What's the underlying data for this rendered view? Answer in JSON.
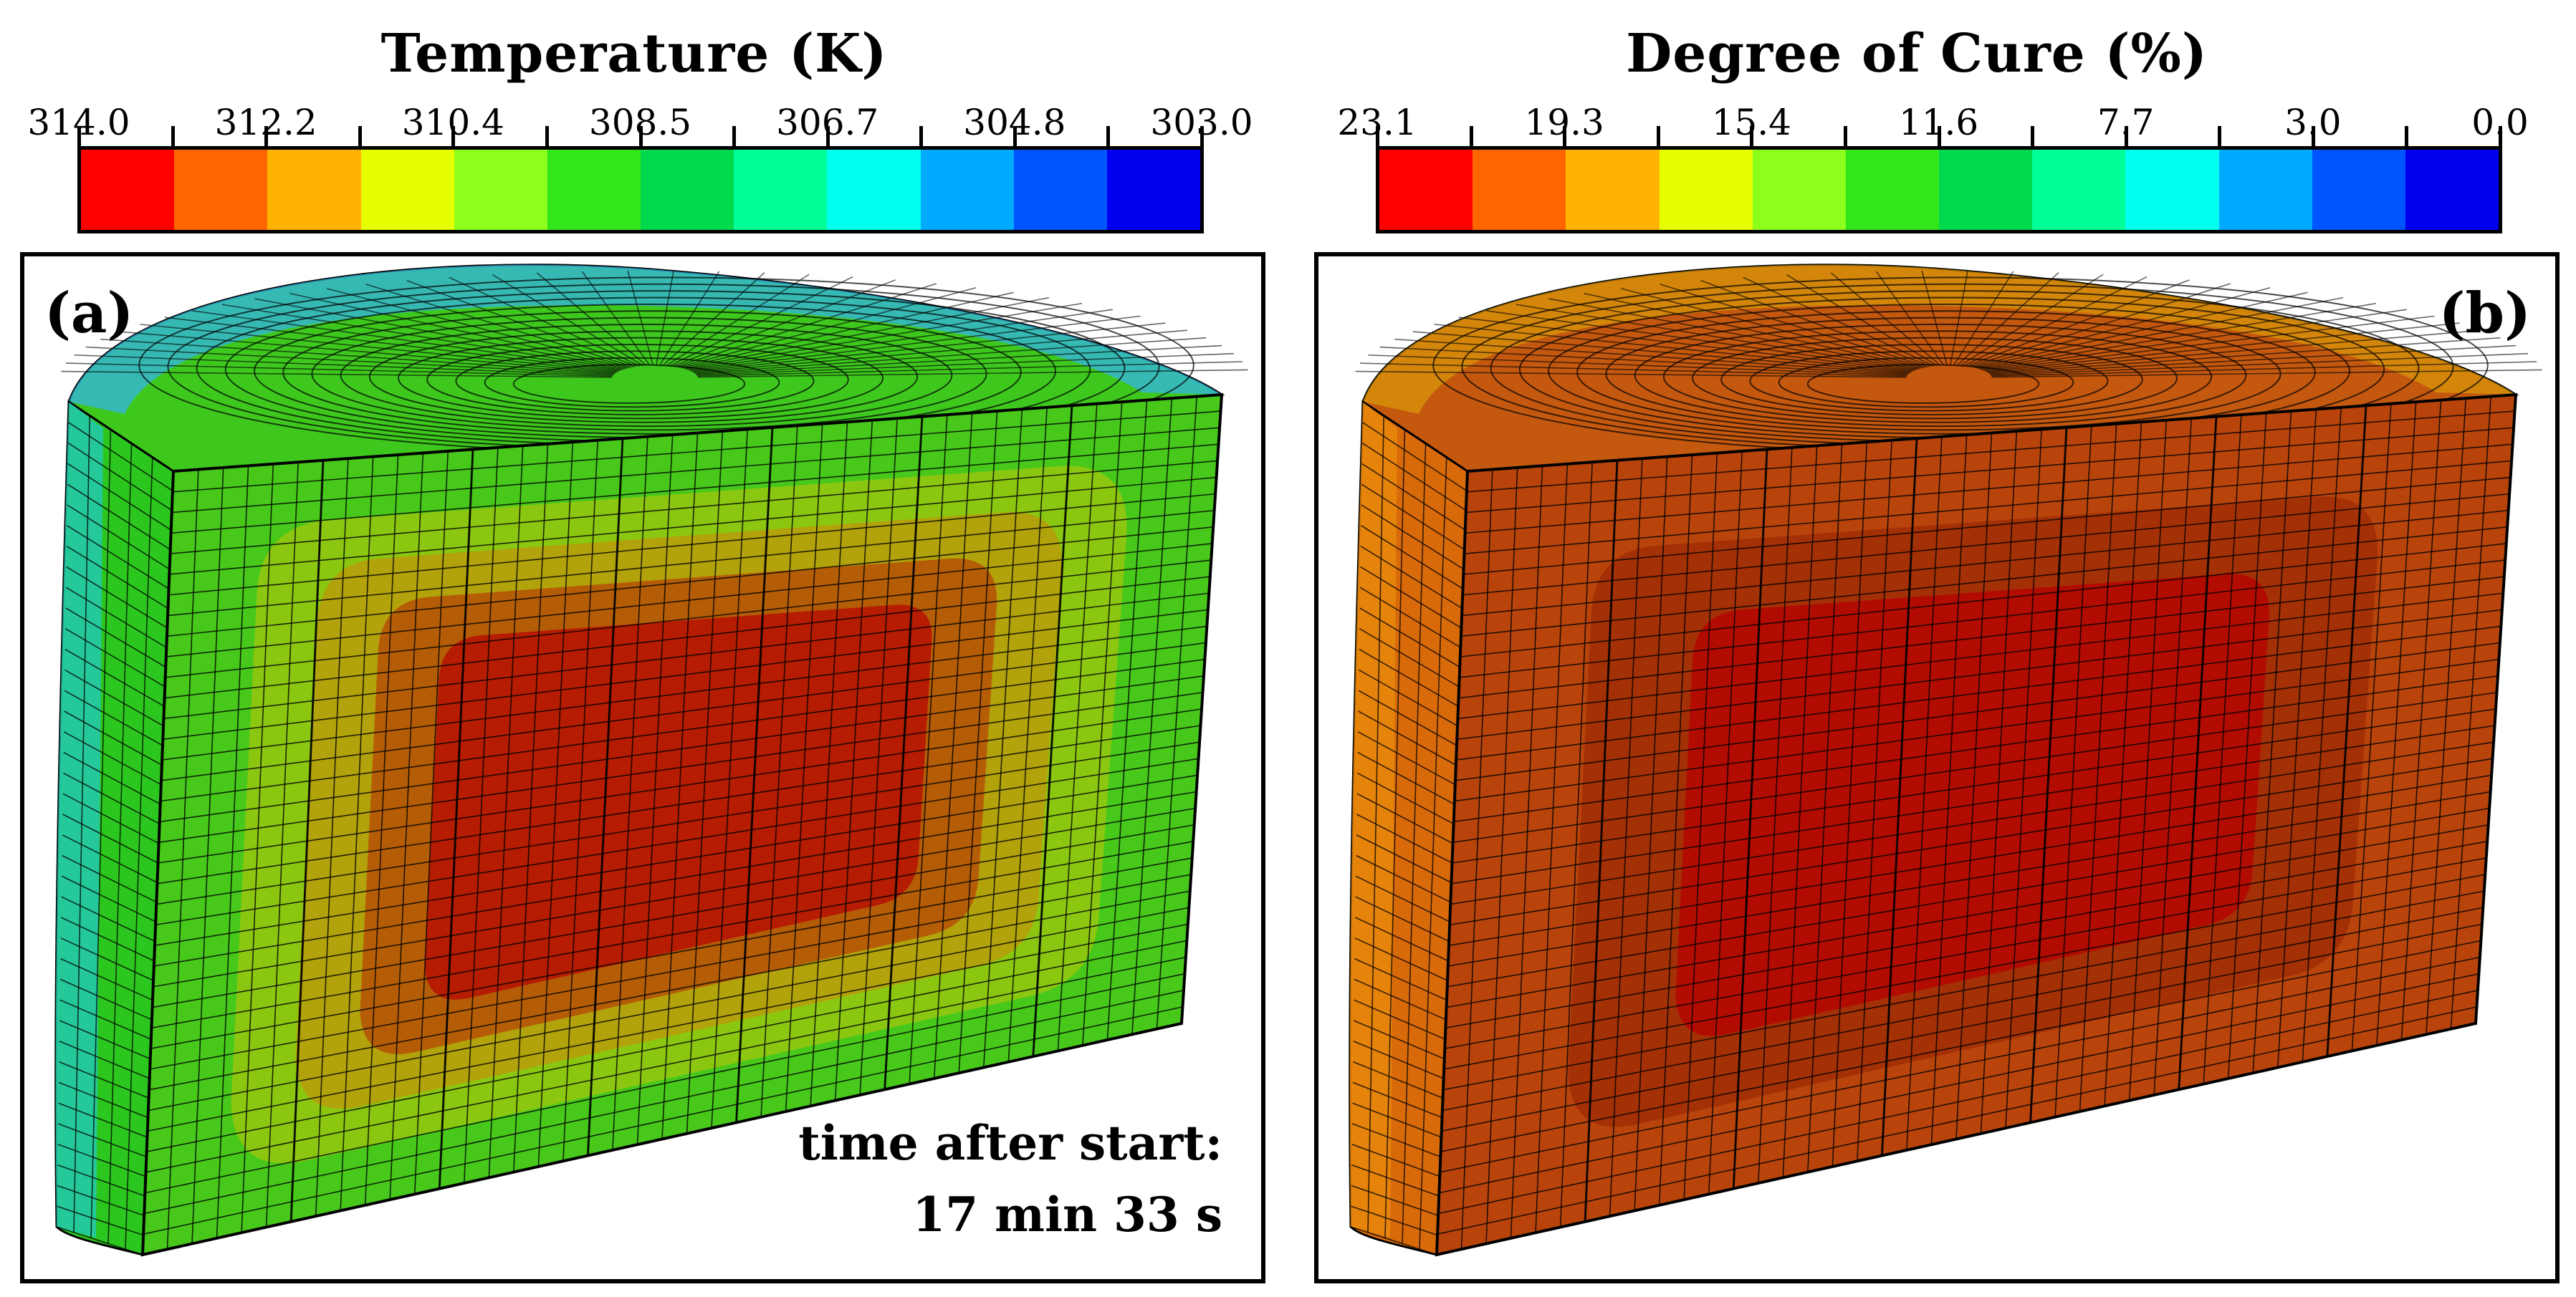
{
  "colorbars": {
    "temperature": {
      "title": "Temperature (K)",
      "ticks": [
        "314.0",
        "312.2",
        "310.4",
        "308.5",
        "306.7",
        "304.8",
        "303.0"
      ],
      "colors": [
        "#ff0000",
        "#ff6600",
        "#ffb300",
        "#e6ff00",
        "#8cff1a",
        "#33e61a",
        "#00d94d",
        "#00ff99",
        "#00ffee",
        "#00aaff",
        "#0055ff",
        "#0000ee"
      ]
    },
    "cure": {
      "title": "Degree of Cure (%)",
      "ticks": [
        "23.1",
        "19.3",
        "15.4",
        "11.6",
        "7.7",
        "3.0",
        "0.0"
      ],
      "colors": [
        "#ff0000",
        "#ff6600",
        "#ffb300",
        "#e6ff00",
        "#8cff1a",
        "#33e61a",
        "#00d94d",
        "#00ff99",
        "#00ffee",
        "#00aaff",
        "#0055ff",
        "#0000ee"
      ]
    }
  },
  "panels": {
    "a": {
      "label": "(a)",
      "time_line1": "time after start:",
      "time_line2": "17 min 33 s"
    },
    "b": {
      "label": "(b)"
    }
  },
  "fields": {
    "a": {
      "top_face_color": "#3ec81e",
      "top_edge_color": "#36b4e6",
      "side_outer_color": "#2cc71e",
      "side_left_color": "#24c8b8",
      "front_rings": [
        "#47c81b",
        "#8bc711",
        "#b2a20b",
        "#b45d06",
        "#b51c02"
      ]
    },
    "b": {
      "top_face_color": "#c4580f",
      "top_edge_color": "#d8960a",
      "side_outer_color": "#d86a0a",
      "side_left_color": "#e88a0b",
      "front_rings": [
        "#b8440c",
        "#a43006",
        "#b20c02"
      ]
    }
  }
}
